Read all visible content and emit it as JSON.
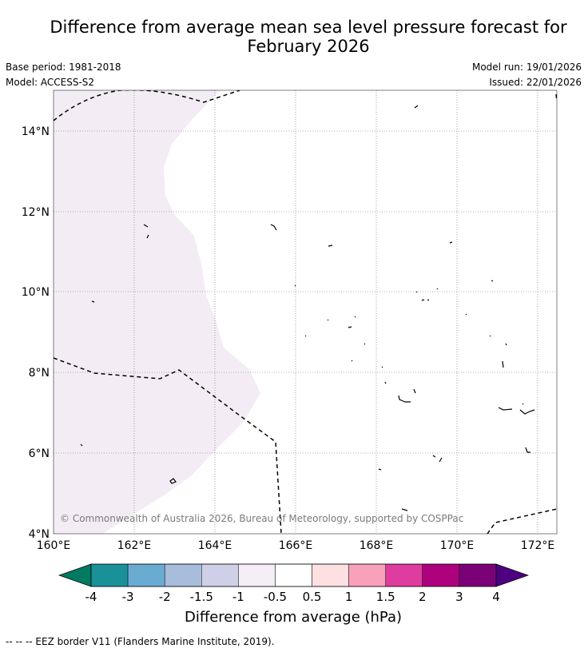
{
  "title_line1": "Difference from average mean sea level pressure forecast for",
  "title_line2": "February 2026",
  "base_period": "Base period: 1981-2018",
  "model": "Model: ACCESS-S2",
  "model_run": "Model run: 19/01/2026",
  "issued": "Issued: 22/01/2026",
  "map": {
    "y_ticks": [
      "14°N",
      "12°N",
      "10°N",
      "8°N",
      "6°N",
      "4°N"
    ],
    "x_ticks": [
      "160°E",
      "162°E",
      "164°E",
      "166°E",
      "168°E",
      "170°E",
      "172°E"
    ],
    "copyright": "© Commonwealth of Australia 2026, Bureau of Meteorology, supported by COSPPac",
    "anomaly_fill_color": "#f3ecf5"
  },
  "colorbar": {
    "label": "Difference from average (hPa)",
    "tick_labels": [
      "-4",
      "-3",
      "-2",
      "-1.5",
      "-1",
      "-0.5",
      "0.5",
      "1",
      "1.5",
      "2",
      "3",
      "4"
    ],
    "low_extend_color": "#007a60",
    "high_extend_color": "#4d0080",
    "colors": [
      "#1a9199",
      "#6aabd2",
      "#a8bcdc",
      "#cdd0e6",
      "#f5eef7",
      "#ffffff",
      "#fde0e2",
      "#f9a0bb",
      "#de3c9e",
      "#ae017e",
      "#7a0177"
    ]
  },
  "footer": "--  --  -- EEZ border V11 (Flanders Marine Institute, 2019)."
}
